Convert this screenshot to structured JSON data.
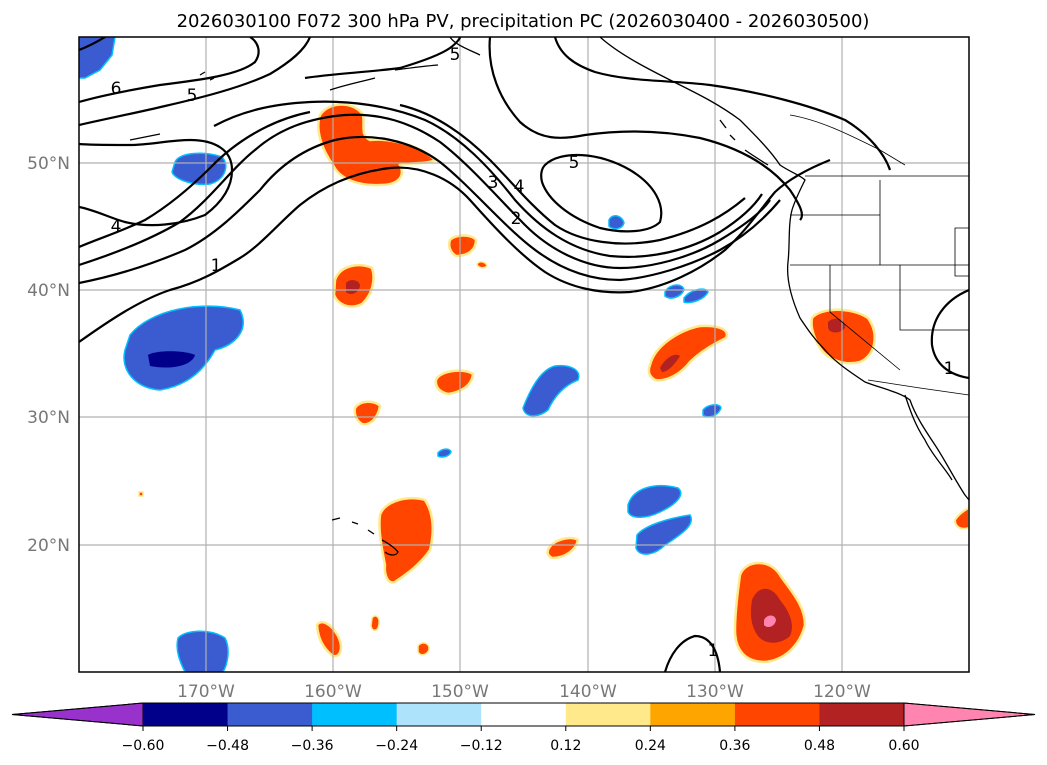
{
  "title": "2026030100 F072 300 hPa PV, precipitation PC (2026030400 - 2026030500)",
  "map": {
    "lat_labels": [
      "50°N",
      "40°N",
      "30°N",
      "20°N"
    ],
    "lon_labels": [
      "170°W",
      "160°W",
      "150°W",
      "140°W",
      "130°W",
      "120°W"
    ],
    "contour_labels": [
      "6",
      "5",
      "5",
      "5",
      "4",
      "4",
      "3",
      "2",
      "1",
      "1",
      "1"
    ]
  },
  "colorbar": {
    "ticks": [
      "−0.60",
      "−0.48",
      "−0.36",
      "−0.24",
      "−0.12",
      "0.12",
      "0.24",
      "0.36",
      "0.48",
      "0.60"
    ],
    "colors": [
      "#9932cc",
      "#00008b",
      "#3b5bd0",
      "#00bfff",
      "#aee4fb",
      "#ffffff",
      "#ffe98a",
      "#ffa500",
      "#ff4500",
      "#b22222",
      "#ff85b0"
    ]
  },
  "colors": {
    "neg_strong": "#00008b",
    "neg": "#3b5bd0",
    "neg_light": "#00bfff",
    "neg_faint": "#aee4fb",
    "pos_faint": "#ffe98a",
    "pos_light": "#ffa500",
    "pos": "#ff4500",
    "pos_strong": "#b22222",
    "pos_max": "#ff85b0"
  }
}
